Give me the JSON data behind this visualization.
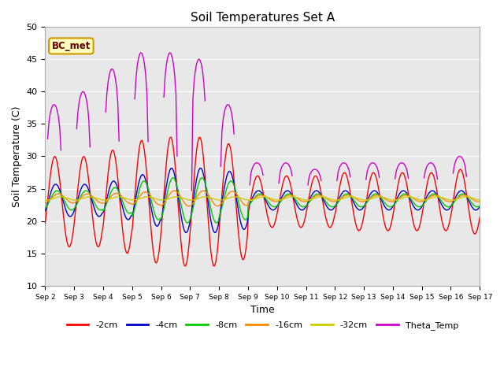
{
  "title": "Soil Temperatures Set A",
  "xlabel": "Time",
  "ylabel": "Soil Temperature (C)",
  "ylim": [
    10,
    50
  ],
  "yticks": [
    10,
    15,
    20,
    25,
    30,
    35,
    40,
    45,
    50
  ],
  "colors": {
    "-2cm": "#ff0000",
    "-4cm": "#0000cc",
    "-8cm": "#00cc00",
    "-16cm": "#ff8800",
    "-32cm": "#cccc00",
    "Theta_Temp": "#cc00cc"
  },
  "legend_labels": [
    "-2cm",
    "-4cm",
    "-8cm",
    "-16cm",
    "-32cm",
    "Theta_Temp"
  ],
  "annotation_text": "BC_met",
  "bg_color": "#e8e8e8",
  "n_days": 15,
  "start_day": 2
}
